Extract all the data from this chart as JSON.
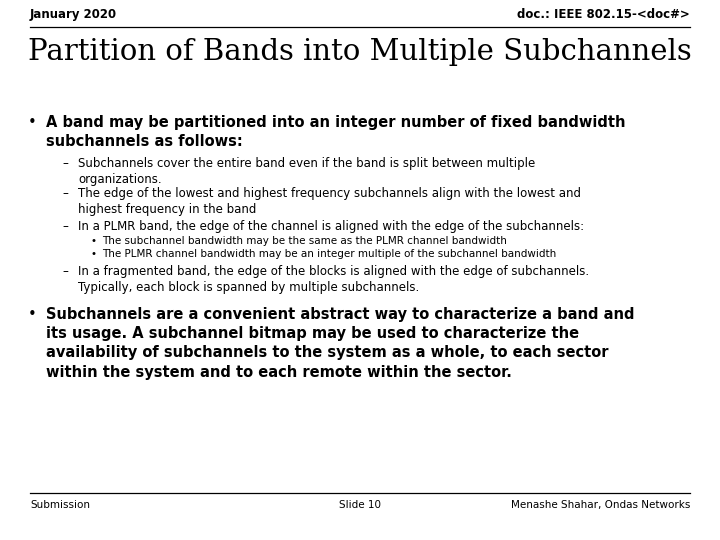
{
  "slide_bg": "#ffffff",
  "header_left": "January 2020",
  "header_right": "doc.: IEEE 802.15-<doc#>",
  "title": "Partition of Bands into Multiple Subchannels",
  "bullet1_line1": "A band may be partitioned into an integer number of fixed bandwidth",
  "bullet1_line2": "subchannels as follows:",
  "sub1": "Subchannels cover the entire band even if the band is split between multiple\norganizations.",
  "sub2": "The edge of the lowest and highest frequency subchannels align with the lowest and\nhighest frequency in the band",
  "sub3": "In a PLMR band, the edge of the channel is aligned with the edge of the subchannels:",
  "subsub1": "The subchannel bandwidth may be the same as the PLMR channel bandwidth",
  "subsub2": "The PLMR channel bandwidth may be an integer multiple of the subchannel bandwidth",
  "sub4": "In a fragmented band, the edge of the blocks is aligned with the edge of subchannels.\nTypically, each block is spanned by multiple subchannels.",
  "bullet2_line1": "Subchannels are a convenient abstract way to characterize a band and",
  "bullet2_line2": "its usage. A subchannel bitmap may be used to characterize the",
  "bullet2_line3": "availability of subchannels to the system as a whole, to each sector",
  "bullet2_line4": "within the system and to each remote within the sector.",
  "footer_left": "Submission",
  "footer_center": "Slide 10",
  "footer_right": "Menashe Shahar, Ondas Networks",
  "text_color": "#000000",
  "line_color": "#000000",
  "header_fontsize": 8.5,
  "title_fontsize": 21,
  "bullet_fontsize": 10.5,
  "sub_fontsize": 8.5,
  "subsub_fontsize": 7.5,
  "footer_fontsize": 7.5
}
